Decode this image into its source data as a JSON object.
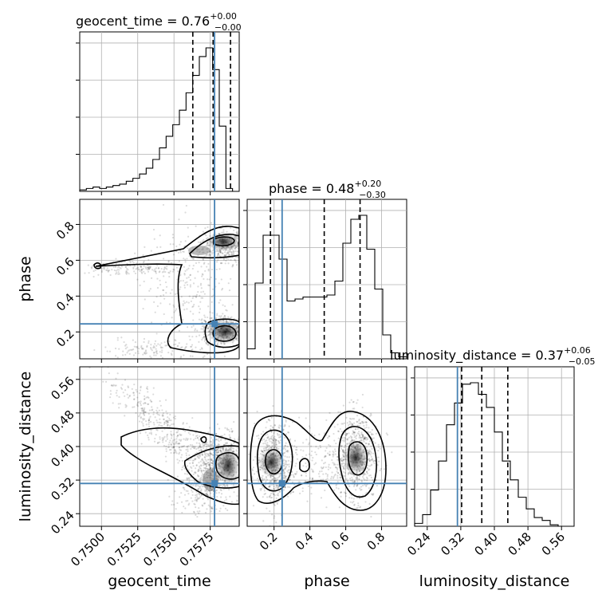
{
  "chart_data": {
    "type": "corner",
    "colors": {
      "truth": "#4682b4",
      "line": "#000000",
      "grid": "#b0b0b0"
    },
    "parameters": [
      {
        "name": "geocent_time",
        "label": "geocent_time",
        "range": [
          0.7485,
          0.7595
        ],
        "ticks": [
          0.75,
          0.7525,
          0.755,
          0.7575
        ],
        "tick_labels": [
          "0.7500",
          "0.7525",
          "0.7550",
          "0.7575"
        ],
        "truth": 0.7578,
        "quantiles": [
          0.7563,
          0.7577,
          0.7589
        ],
        "title_main": "geocent_time = 0.76",
        "title_sup": "+0.00",
        "title_sub": "−0.00",
        "hist_edges_start": 0.7485,
        "hist_bin_width": 0.0004583,
        "hist_values": [
          1,
          2,
          3,
          2,
          3,
          4,
          5,
          7,
          9,
          12,
          16,
          22,
          30,
          38,
          46,
          56,
          68,
          80,
          93,
          99,
          84,
          45,
          2,
          0
        ]
      },
      {
        "name": "phase",
        "label": "phase",
        "range": [
          0.05,
          0.94
        ],
        "ticks": [
          0.2,
          0.4,
          0.6,
          0.8
        ],
        "tick_labels": [
          "0.2",
          "0.4",
          "0.6",
          "0.8"
        ],
        "truth": 0.245,
        "quantiles": [
          0.18,
          0.48,
          0.68
        ],
        "title_main": "phase = 0.48",
        "title_sup": "+0.20",
        "title_sub": "−0.30",
        "hist_edges_start": 0.05,
        "hist_bin_width": 0.0445,
        "hist_values": [
          5,
          38,
          62,
          62,
          50,
          29,
          30,
          31,
          31,
          31,
          32,
          39,
          58,
          70,
          72,
          55,
          35,
          12,
          3,
          1
        ]
      },
      {
        "name": "luminosity_distance",
        "label": "luminosity_distance",
        "range": [
          0.21,
          0.59
        ],
        "ticks": [
          0.24,
          0.32,
          0.4,
          0.48,
          0.56
        ],
        "tick_labels": [
          "0.24",
          "0.32",
          "0.40",
          "0.48",
          "0.56"
        ],
        "truth": 0.312,
        "quantiles": [
          0.322,
          0.37,
          0.432
        ],
        "title_main": "luminosity_distance = 0.37",
        "title_sup": "+0.06",
        "title_sub": "−0.05",
        "hist_edges_start": 0.21,
        "hist_bin_width": 0.019,
        "hist_values": [
          2,
          8,
          25,
          45,
          70,
          85,
          98,
          99,
          91,
          82,
          65,
          45,
          32,
          20,
          12,
          6,
          4,
          1,
          0,
          0
        ]
      }
    ]
  }
}
